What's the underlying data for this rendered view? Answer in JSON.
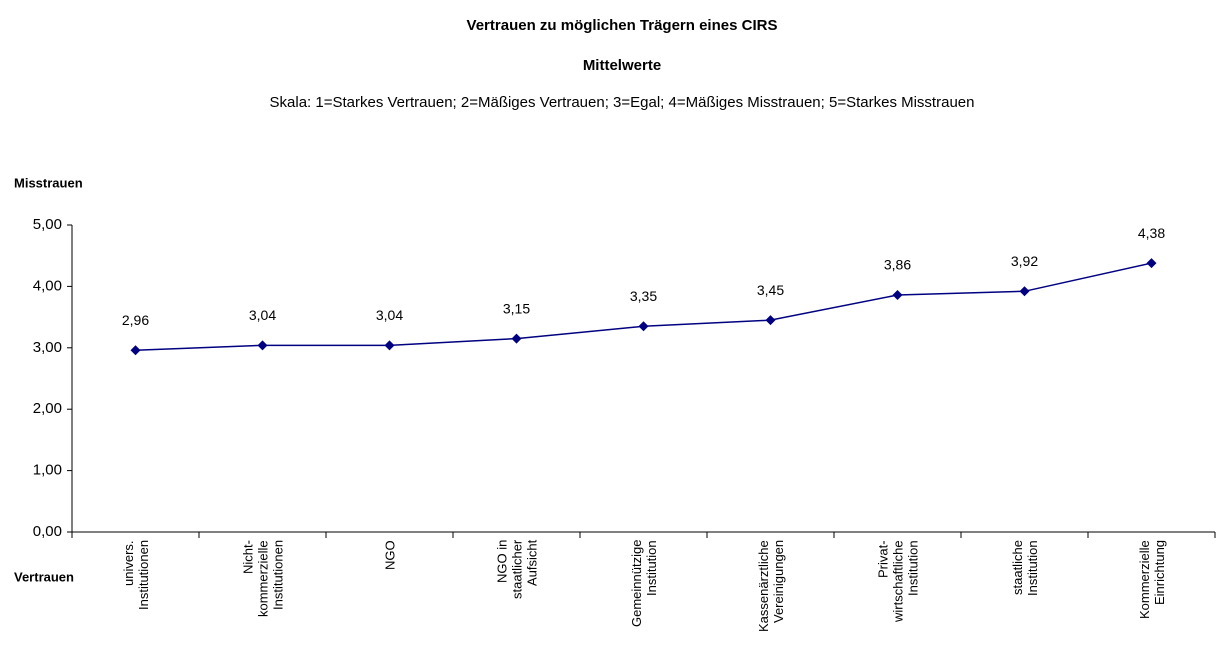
{
  "chart_data": {
    "type": "line",
    "title": "Vertrauen zu möglichen Trägern eines CIRS",
    "subtitle": "Mittelwerte",
    "note": "Skala: 1=Starkes Vertrauen; 2=Mäßiges Vertrauen; 3=Egal; 4=Mäßiges Misstrauen; 5=Starkes Misstrauen",
    "y_label": "Misstrauen",
    "x_label": "Vertrauen",
    "categories": [
      "univers.\nInstitutionen",
      "Nicht-\nkommerzielle\nInstitutionen",
      "NGO",
      "NGO in\nstaatlicher\nAufsicht",
      "Gemeinnützige\nInstitution",
      "Kassenärztliche\nVereinigungen",
      "Privat-\nwirtschaftliche\nInstitution",
      "staatliche\nInstitution",
      "Kommerzielle\nEinrichtung"
    ],
    "values": [
      2.96,
      3.04,
      3.04,
      3.15,
      3.35,
      3.45,
      3.86,
      3.92,
      4.38
    ],
    "value_labels": [
      "2,96",
      "3,04",
      "3,04",
      "3,15",
      "3,35",
      "3,45",
      "3,86",
      "3,92",
      "4,38"
    ],
    "color": "#000080",
    "ylim": [
      0,
      5
    ],
    "yticks": [
      {
        "value": 0,
        "label": "0,00"
      },
      {
        "value": 1,
        "label": "1,00"
      },
      {
        "value": 2,
        "label": "2,00"
      },
      {
        "value": 3,
        "label": "3,00"
      },
      {
        "value": 4,
        "label": "4,00"
      },
      {
        "value": 5,
        "label": "5,00"
      }
    ],
    "grid": false
  }
}
